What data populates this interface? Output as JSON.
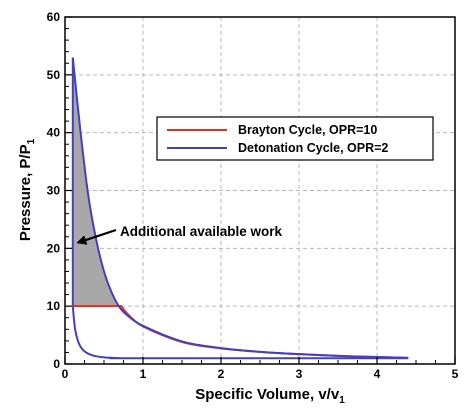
{
  "chart_data": {
    "type": "line",
    "xlabel": "Specific Volume, v/v",
    "xlabel_sub": "1",
    "ylabel": "Pressure, P/P",
    "ylabel_sub": "1",
    "xlim": [
      0,
      5
    ],
    "ylim": [
      0,
      60
    ],
    "xticks": [
      "0",
      "1",
      "2",
      "3",
      "4",
      "5"
    ],
    "yticks": [
      "0",
      "10",
      "20",
      "30",
      "40",
      "50",
      "60"
    ],
    "grid": true,
    "legend_position": "center-right",
    "series": [
      {
        "name": "Brayton Cycle, OPR=10",
        "color": "#e03020",
        "points": [
          [
            0.1,
            10.0
          ],
          [
            0.72,
            10.0
          ],
          [
            0.8,
            8.7
          ],
          [
            1.0,
            6.5
          ],
          [
            1.5,
            3.8
          ],
          [
            2.0,
            2.7
          ],
          [
            2.5,
            2.1
          ],
          [
            3.0,
            1.7
          ],
          [
            3.5,
            1.4
          ],
          [
            4.0,
            1.2
          ],
          [
            4.4,
            1.05
          ]
        ]
      },
      {
        "name": "Detonation Cycle, OPR=2",
        "color": "#4040c0",
        "points": [
          [
            0.1,
            53.0
          ],
          [
            0.2,
            40.0
          ],
          [
            0.3,
            29.0
          ],
          [
            0.4,
            21.5
          ],
          [
            0.5,
            16.0
          ],
          [
            0.6,
            12.3
          ],
          [
            0.7,
            9.8
          ],
          [
            0.8,
            8.4
          ],
          [
            1.0,
            6.6
          ],
          [
            1.5,
            3.9
          ],
          [
            2.0,
            2.75
          ],
          [
            2.5,
            2.1
          ],
          [
            3.0,
            1.7
          ],
          [
            3.5,
            1.4
          ],
          [
            4.0,
            1.2
          ],
          [
            4.4,
            1.05
          ]
        ]
      }
    ],
    "compression_curve": {
      "color": "#4040c0",
      "points": [
        [
          0.1,
          10.0
        ],
        [
          0.13,
          6.0
        ],
        [
          0.18,
          3.5
        ],
        [
          0.25,
          2.2
        ],
        [
          0.35,
          1.5
        ],
        [
          0.5,
          1.15
        ],
        [
          0.7,
          1.02
        ],
        [
          0.9,
          1.0
        ],
        [
          4.4,
          1.0
        ]
      ]
    },
    "annotation": {
      "text": "Additional available work",
      "arrow_to": [
        0.17,
        21.0
      ]
    }
  }
}
